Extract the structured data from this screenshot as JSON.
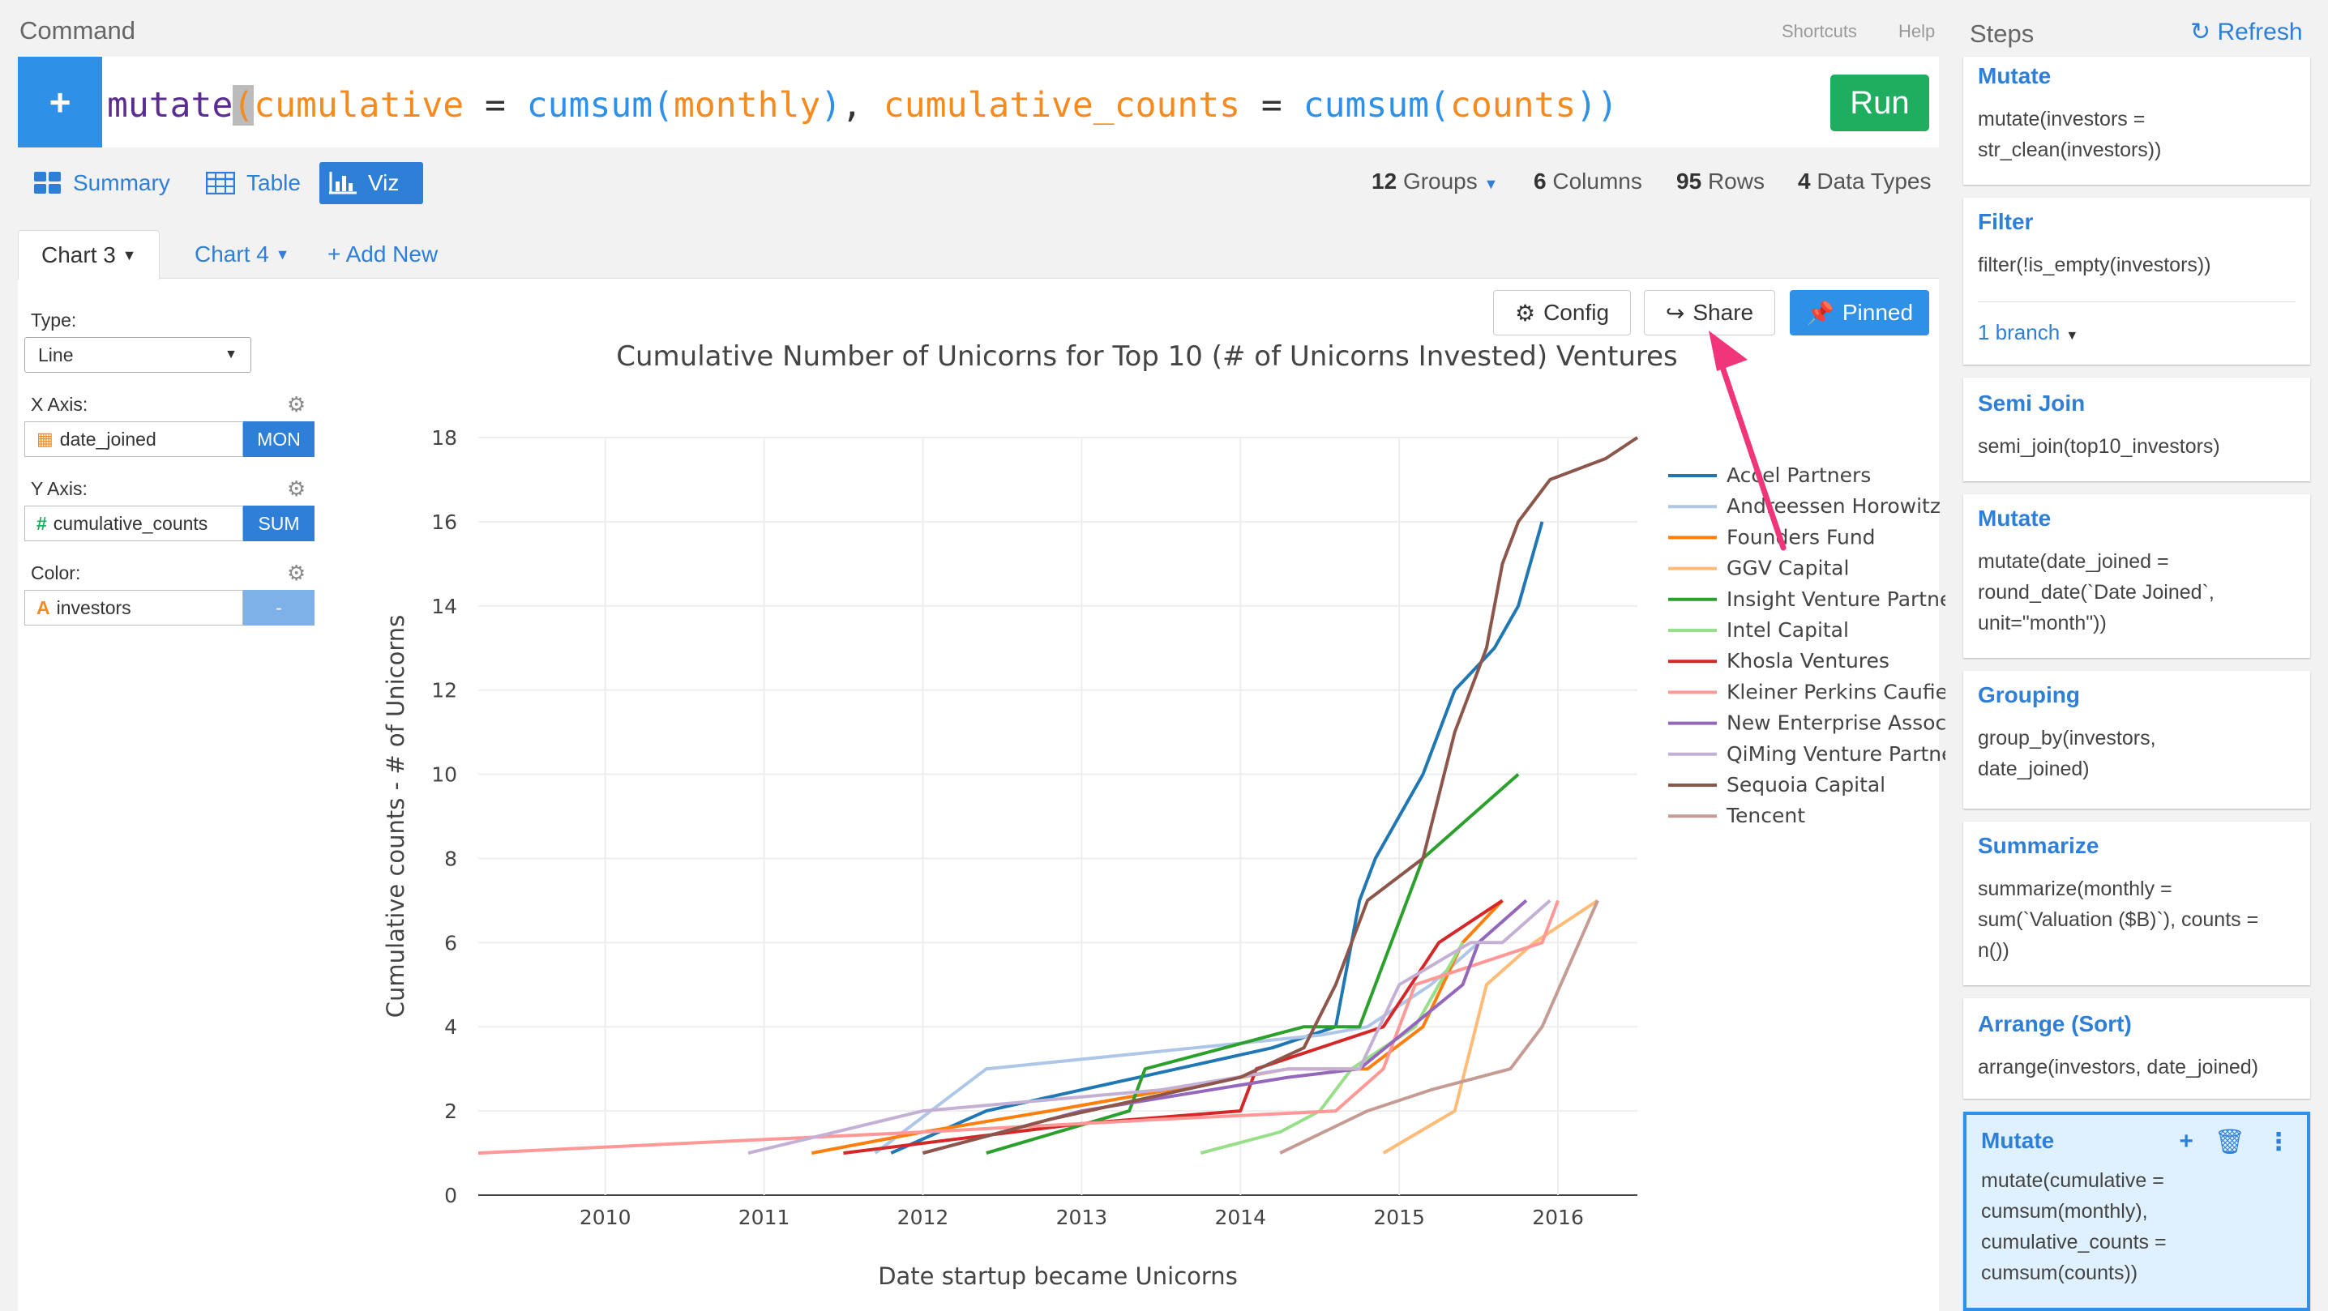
{
  "command": {
    "label": "Command",
    "shortcuts": "Shortcuts",
    "help": "Help",
    "add_button": "+",
    "tokens": [
      {
        "t": "mutate",
        "c": "tk-f"
      },
      {
        "t": "(",
        "c": "cursor-paren"
      },
      {
        "t": "cumulative",
        "c": "tk-p"
      },
      {
        "t": " = ",
        "c": "tk-o"
      },
      {
        "t": "cumsum",
        "c": "tk-fn"
      },
      {
        "t": "(",
        "c": "tk-pr"
      },
      {
        "t": "monthly",
        "c": "tk-p"
      },
      {
        "t": ")",
        "c": "tk-pr"
      },
      {
        "t": ", ",
        "c": "tk-o"
      },
      {
        "t": "cumulative_counts",
        "c": "tk-p"
      },
      {
        "t": " = ",
        "c": "tk-o"
      },
      {
        "t": "cumsum",
        "c": "tk-fn"
      },
      {
        "t": "(",
        "c": "tk-pr"
      },
      {
        "t": "counts",
        "c": "tk-p"
      },
      {
        "t": "))",
        "c": "tk-pr"
      }
    ],
    "run_label": "Run"
  },
  "view_tabs": {
    "summary": "Summary",
    "table": "Table",
    "viz": "Viz",
    "active": "viz"
  },
  "info": {
    "groups_count": "12",
    "groups_label": "Groups",
    "columns_count": "6",
    "columns_label": "Columns",
    "rows_count": "95",
    "rows_label": "Rows",
    "types_count": "4",
    "types_label": "Data Types"
  },
  "chart_tabs": {
    "chart3": "Chart 3",
    "chart4": "Chart 4",
    "add_new": "+ Add New"
  },
  "properties": {
    "type_label": "Type:",
    "type_value": "Line",
    "x_label": "X Axis:",
    "x_field": "date_joined",
    "x_agg": "MON",
    "y_label": "Y Axis:",
    "y_field": "cumulative_counts",
    "y_agg": "SUM",
    "color_label": "Color:",
    "color_field": "investors",
    "color_agg": "-",
    "calendar_icon": "calendar-icon",
    "number_icon": "#",
    "text_icon": "A"
  },
  "toolbar": {
    "config": "Config",
    "share": "Share",
    "pinned": "Pinned"
  },
  "chart_data": {
    "type": "line",
    "title": "Cumulative Number of Unicorns for Top 10 (# of Unicorns Invested) Ventures",
    "xlabel": "Date startup became Unicorns",
    "ylabel": "Cumulative counts - # of Unicorns",
    "xlim": [
      2009.2,
      2016.5
    ],
    "ylim": [
      0,
      18
    ],
    "x_ticks": [
      "2010",
      "2011",
      "2012",
      "2013",
      "2014",
      "2015",
      "2016"
    ],
    "y_ticks": [
      "0",
      "2",
      "4",
      "6",
      "8",
      "10",
      "12",
      "14",
      "16",
      "18"
    ],
    "grid": true,
    "legend_position": "right",
    "series": [
      {
        "name": "Accel Partners",
        "color": "#1f77b4",
        "x": [
          2011.8,
          2012.4,
          2013.0,
          2013.6,
          2014.2,
          2014.6,
          2014.75,
          2014.85,
          2015.15,
          2015.35,
          2015.6,
          2015.75,
          2015.9
        ],
        "y": [
          1,
          2,
          2.5,
          3,
          3.5,
          4,
          7,
          8,
          10,
          12,
          13,
          14,
          16
        ]
      },
      {
        "name": "Andreessen Horowitz",
        "color": "#aec7e8",
        "x": [
          2011.7,
          2012.4,
          2014.5,
          2014.8,
          2015.2,
          2015.5,
          2015.8
        ],
        "y": [
          1,
          3,
          3.8,
          4,
          5,
          6,
          7
        ]
      },
      {
        "name": "Founders Fund",
        "color": "#ff7f0e",
        "x": [
          2011.3,
          2012.0,
          2012.8,
          2014.3,
          2014.8,
          2015.15,
          2015.4,
          2015.65
        ],
        "y": [
          1,
          1.5,
          2,
          3,
          3,
          4,
          6,
          7
        ]
      },
      {
        "name": "GGV Capital",
        "color": "#ffbb78",
        "x": [
          2014.9,
          2015.35,
          2015.55,
          2015.85,
          2016.25
        ],
        "y": [
          1,
          2,
          5,
          6,
          7
        ]
      },
      {
        "name": "Insight Venture Partners",
        "color": "#2ca02c",
        "x": [
          2012.4,
          2013.3,
          2013.4,
          2014.4,
          2014.75,
          2015.15,
          2015.75
        ],
        "y": [
          1,
          2,
          3,
          4,
          4,
          8,
          10
        ]
      },
      {
        "name": "Intel Capital",
        "color": "#98df8a",
        "x": [
          2013.75,
          2014.25,
          2014.5,
          2014.7,
          2015.1,
          2015.4
        ],
        "y": [
          1,
          1.5,
          2,
          3,
          4,
          6
        ]
      },
      {
        "name": "Khosla Ventures",
        "color": "#d62728",
        "x": [
          2011.5,
          2013.0,
          2014.0,
          2014.1,
          2014.9,
          2015.25,
          2015.65
        ],
        "y": [
          1,
          1.7,
          2,
          3,
          4,
          6,
          7
        ]
      },
      {
        "name": "Kleiner Perkins Caufield & Byers",
        "color": "#ff9896",
        "x": [
          2009.2,
          2012.0,
          2013.5,
          2014.6,
          2014.9,
          2015.1,
          2015.9,
          2016.0
        ],
        "y": [
          1,
          1.5,
          1.8,
          2,
          3,
          5,
          6,
          7
        ]
      },
      {
        "name": "New Enterprise Associates",
        "color": "#9467bd",
        "x": [
          2012.0,
          2013.0,
          2014.3,
          2014.75,
          2015.4,
          2015.5,
          2015.8
        ],
        "y": [
          1,
          2,
          2.8,
          3,
          5,
          6,
          7
        ]
      },
      {
        "name": "QiMing Venture Partners",
        "color": "#c5b0d5",
        "x": [
          2010.9,
          2012.0,
          2013.5,
          2014.3,
          2014.75,
          2015.0,
          2015.45,
          2015.65,
          2015.95
        ],
        "y": [
          1,
          2,
          2.5,
          3,
          3,
          5,
          6,
          6,
          7
        ]
      },
      {
        "name": "Sequoia Capital",
        "color": "#8c564b",
        "x": [
          2012.0,
          2012.8,
          2014.0,
          2014.4,
          2014.6,
          2014.8,
          2015.15,
          2015.35,
          2015.55,
          2015.65,
          2015.75,
          2015.95,
          2016.3,
          2016.5
        ],
        "y": [
          1,
          1.8,
          2.8,
          3.5,
          5,
          7,
          8,
          11,
          13,
          15,
          16,
          17,
          17.5,
          18
        ]
      },
      {
        "name": "Tencent",
        "color": "#c49c94",
        "x": [
          2014.25,
          2014.8,
          2015.2,
          2015.7,
          2015.9,
          2016.25
        ],
        "y": [
          1,
          2,
          2.5,
          3,
          4,
          7
        ]
      }
    ]
  },
  "steps": {
    "title": "Steps",
    "refresh": "Refresh",
    "items": [
      {
        "title": "Mutate",
        "body": "mutate(investors =\nstr_clean(investors))"
      },
      {
        "title": "Filter",
        "body": "filter(!is_empty(investors))",
        "branch": "1 branch"
      },
      {
        "title": "Semi Join",
        "body": "semi_join(top10_investors)"
      },
      {
        "title": "Mutate",
        "body": "mutate(date_joined =\nround_date(`Date Joined`,\nunit=\"month\"))"
      },
      {
        "title": "Grouping",
        "body": "group_by(investors,\ndate_joined)"
      },
      {
        "title": "Summarize",
        "body": "summarize(monthly =\nsum(`Valuation ($B)`), counts =\nn())"
      },
      {
        "title": "Arrange (Sort)",
        "body": "arrange(investors, date_joined)"
      },
      {
        "title": "Mutate",
        "body": "mutate(cumulative =\ncumsum(monthly),\ncumulative_counts =\ncumsum(counts))",
        "active": true
      }
    ]
  },
  "colors": {
    "accent": "#2e7fd8",
    "run": "#1fae5f",
    "pin": "#2e90e6",
    "arrow": "#f0357a"
  }
}
